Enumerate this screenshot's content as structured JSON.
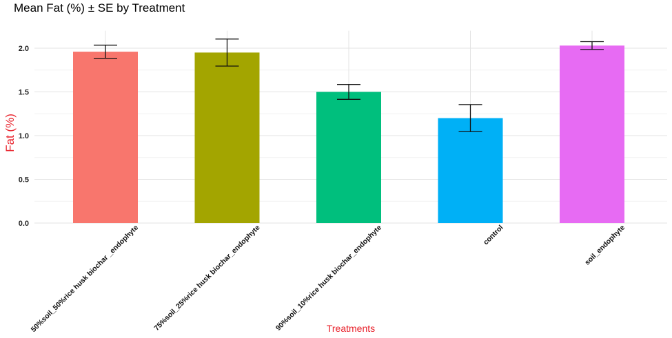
{
  "chart_data": {
    "type": "bar",
    "title": "Mean Fat (%) ± SE by Treatment",
    "xlabel": "Treatments",
    "ylabel": "Fat (%)",
    "ylim": [
      0,
      2.2
    ],
    "yticks": [
      "0.0",
      "0.5",
      "1.0",
      "1.5",
      "2.0"
    ],
    "categories": [
      "50%soil_50%rice husk biochar _endophyte",
      "75%soil_25%rice husk biochar_endophyte",
      "90%soil_10%rice husk biochar_endophyte",
      "control",
      "soil_endophyte"
    ],
    "values": [
      1.96,
      1.95,
      1.5,
      1.2,
      2.03
    ],
    "se": [
      0.075,
      0.155,
      0.085,
      0.155,
      0.045
    ],
    "colors": [
      "#F8766D",
      "#A3A500",
      "#00BF7D",
      "#00B0F6",
      "#E76BF3"
    ],
    "grid": true,
    "legend": "none"
  }
}
